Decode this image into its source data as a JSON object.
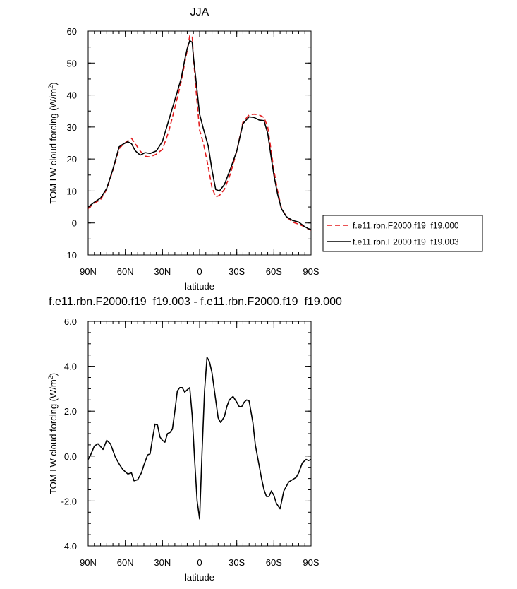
{
  "chart_data": [
    {
      "type": "line",
      "title": "JJA",
      "xlabel": "latitude",
      "ylabel": "TOM LW cloud forcing (W/m",
      "ylabel_sup": "2",
      "ylabel_end": ")",
      "xlim": [
        90,
        -90
      ],
      "ylim": [
        -10,
        60
      ],
      "xticks": [
        90,
        60,
        30,
        0,
        -30,
        -60,
        -90
      ],
      "xtick_labels": [
        "90N",
        "60N",
        "30N",
        "0",
        "30S",
        "60S",
        "90S"
      ],
      "yticks": [
        -10,
        0,
        10,
        20,
        30,
        40,
        50,
        60
      ],
      "ytick_labels": [
        "-10",
        "0",
        "10",
        "20",
        "30",
        "40",
        "50",
        "60"
      ],
      "legend_position": "right",
      "series": [
        {
          "name": "f.e11.rbn.F2000.f19_f19.000",
          "color": "#e31a1c",
          "dash": "dashed",
          "x": [
            90,
            85,
            80,
            75,
            70,
            65,
            62,
            58,
            55,
            52,
            48,
            44,
            40,
            35,
            30,
            25,
            20,
            15,
            12,
            10,
            8,
            6,
            5,
            3,
            0,
            -3,
            -7,
            -10,
            -13,
            -16,
            -20,
            -25,
            -30,
            -35,
            -40,
            -44,
            -48,
            -52,
            -55,
            -58,
            -60,
            -63,
            -66,
            -70,
            -75,
            -80,
            -85,
            -88,
            -90
          ],
          "y": [
            4.5,
            6.2,
            7.3,
            10.5,
            16.5,
            23.2,
            24.5,
            25.7,
            26.5,
            24.8,
            22.5,
            20.9,
            20.6,
            21.5,
            23,
            28.5,
            36,
            44,
            50,
            54,
            58.5,
            58.5,
            52,
            42,
            29,
            25,
            17.5,
            11,
            8.2,
            8.6,
            10.5,
            15.5,
            22.5,
            31.5,
            33.8,
            34,
            33.8,
            33,
            30,
            22,
            16.5,
            10,
            4.8,
            2,
            0.3,
            -0.4,
            -1.2,
            -2,
            -2.2
          ]
        },
        {
          "name": "f.e11.rbn.F2000.f19_f19.003",
          "color": "#000000",
          "dash": "solid",
          "x": [
            90,
            85,
            80,
            75,
            70,
            65,
            62,
            58,
            55,
            52,
            48,
            44,
            40,
            35,
            30,
            25,
            20,
            15,
            12,
            10,
            8,
            6,
            5,
            3,
            0,
            -3,
            -7,
            -10,
            -13,
            -16,
            -20,
            -25,
            -30,
            -35,
            -40,
            -44,
            -48,
            -52,
            -55,
            -58,
            -60,
            -63,
            -66,
            -70,
            -75,
            -80,
            -85,
            -88,
            -90
          ],
          "y": [
            5,
            6.5,
            7.8,
            10.8,
            16.8,
            23.8,
            24.6,
            25.4,
            24.8,
            22.6,
            21.2,
            22,
            21.7,
            22.5,
            25.5,
            32,
            38.5,
            45,
            51,
            54.5,
            57,
            56.5,
            52,
            45,
            34,
            29.5,
            24,
            16.5,
            10.5,
            10,
            12,
            17,
            22.5,
            31,
            33.2,
            33,
            32.2,
            32,
            28,
            20,
            15,
            9,
            4.5,
            2,
            0.8,
            0.3,
            -1.2,
            -1.8,
            -2
          ]
        }
      ]
    },
    {
      "type": "line",
      "title": "f.e11.rbn.F2000.f19_f19.003 - f.e11.rbn.F2000.f19_f19.000",
      "xlabel": "latitude",
      "ylabel": "TOM LW cloud forcing (W/m",
      "ylabel_sup": "2",
      "ylabel_end": ")",
      "xlim": [
        90,
        -90
      ],
      "ylim": [
        -4,
        6
      ],
      "xticks": [
        90,
        60,
        30,
        0,
        -30,
        -60,
        -90
      ],
      "xtick_labels": [
        "90N",
        "60N",
        "30N",
        "0",
        "30S",
        "60S",
        "90S"
      ],
      "yticks": [
        -4,
        -2,
        0,
        2,
        4,
        6
      ],
      "ytick_labels": [
        "-4.0",
        "-2.0",
        "0.0",
        "2.0",
        "4.0",
        "6.0"
      ],
      "series": [
        {
          "color": "#000000",
          "dash": "solid",
          "x": [
            90,
            88,
            85,
            82,
            78,
            75,
            72,
            68,
            65,
            62,
            58,
            55,
            53,
            50,
            47,
            45,
            42,
            40,
            38,
            36,
            34,
            32,
            30,
            28,
            26,
            24,
            22,
            20,
            18,
            16,
            14,
            12,
            10,
            8,
            6,
            4,
            2,
            0,
            -2,
            -4,
            -6,
            -8,
            -10,
            -13,
            -15,
            -17,
            -20,
            -22,
            -24,
            -27,
            -30,
            -32,
            -34,
            -36,
            -38,
            -40,
            -43,
            -45,
            -48,
            -50,
            -52,
            -54,
            -56,
            -58,
            -60,
            -62,
            -65,
            -68,
            -72,
            -75,
            -78,
            -80,
            -83,
            -86,
            -88,
            -90
          ],
          "y": [
            -0.15,
            0.05,
            0.45,
            0.55,
            0.3,
            0.7,
            0.55,
            -0.05,
            -0.35,
            -0.6,
            -0.8,
            -0.75,
            -1.1,
            -1.05,
            -0.75,
            -0.4,
            0.05,
            0.1,
            0.8,
            1.42,
            1.38,
            0.85,
            0.7,
            0.62,
            1,
            1.05,
            1.2,
            2,
            2.9,
            3.05,
            3.05,
            2.85,
            2.95,
            3.05,
            1.8,
            -0.2,
            -2,
            -2.8,
            0.2,
            2.9,
            4.4,
            4.2,
            3.7,
            2.5,
            1.7,
            1.5,
            1.75,
            2.2,
            2.5,
            2.65,
            2.4,
            2.2,
            2.2,
            2.4,
            2.5,
            2.45,
            1.5,
            0.5,
            -0.4,
            -1,
            -1.5,
            -1.8,
            -1.8,
            -1.55,
            -1.75,
            -2.1,
            -2.35,
            -1.55,
            -1.15,
            -1.05,
            -0.95,
            -0.75,
            -0.3,
            -0.15,
            -0.2,
            -0.15
          ]
        }
      ]
    }
  ]
}
